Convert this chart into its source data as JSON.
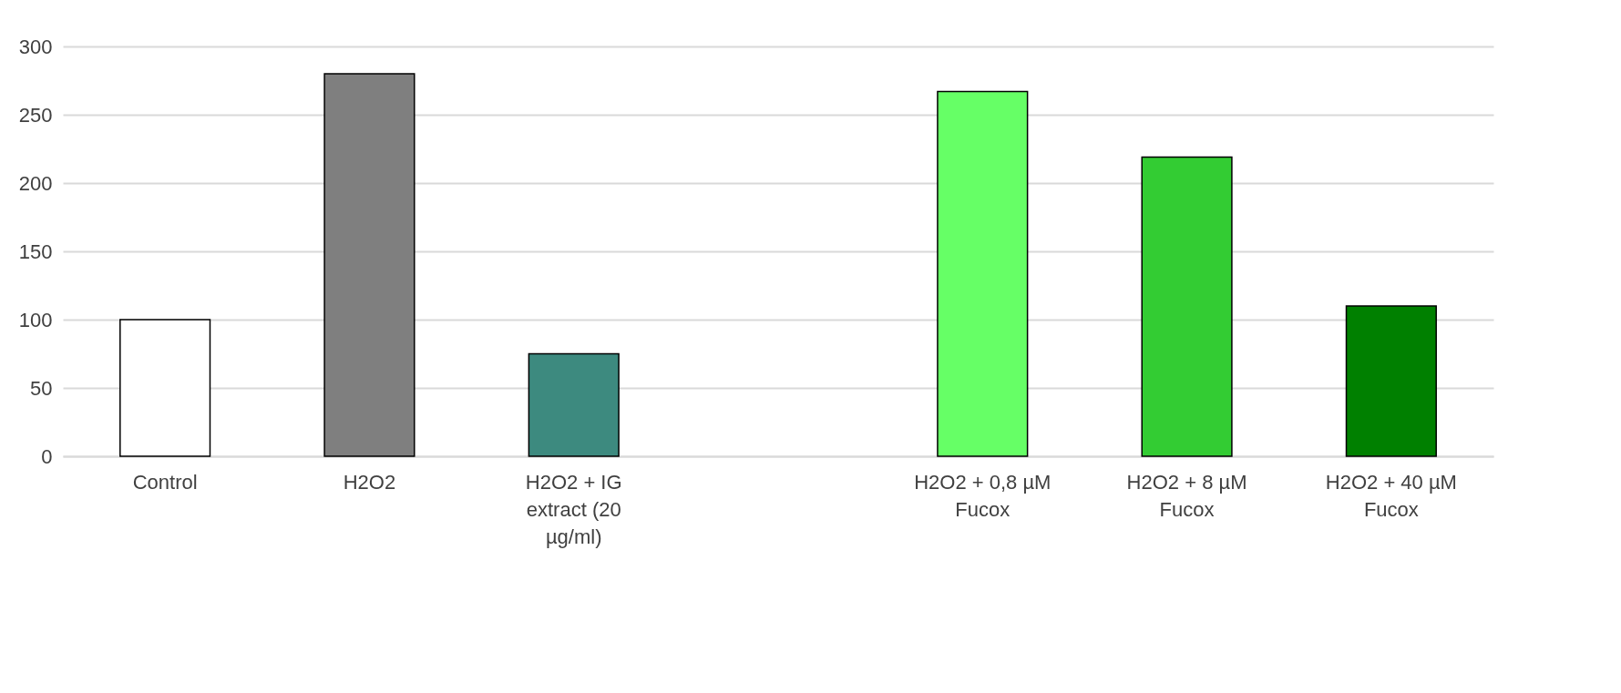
{
  "chart_data": {
    "type": "bar",
    "categories": [
      "Control",
      "H2O2",
      "H2O2 + IG extract (20 µg/ml)",
      null,
      "H2O2 + 0,8 µM Fucox",
      "H2O2 + 8 µM Fucox",
      "H2O2 + 40 µM Fucox"
    ],
    "values": [
      100,
      280,
      75,
      null,
      267,
      219,
      110
    ],
    "colors": [
      "#ffffff",
      "#7f7f7f",
      "#3d8a7f",
      "#ffffff",
      "#66ff66",
      "#33cc33",
      "#008000"
    ],
    "ylim": [
      0,
      300
    ],
    "yticks": [
      0,
      50,
      100,
      150,
      200,
      250,
      300
    ],
    "grid": "y"
  }
}
